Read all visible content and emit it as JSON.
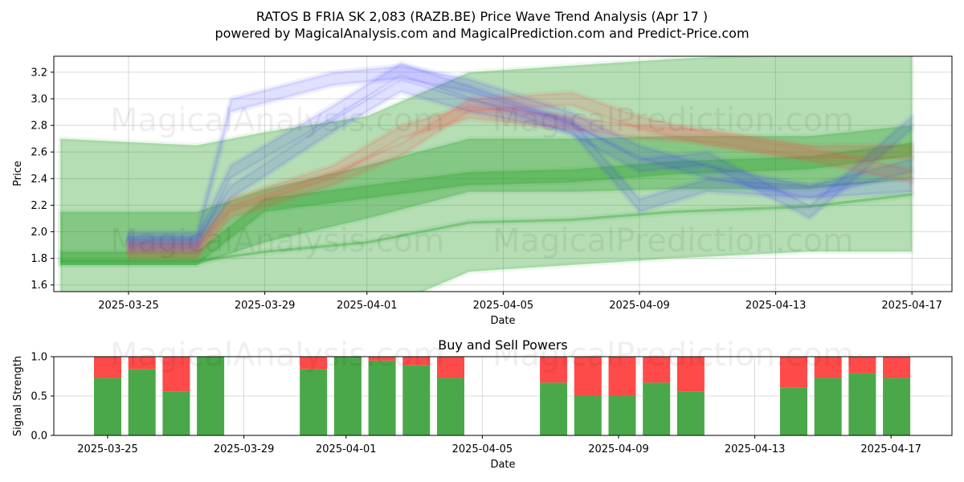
{
  "header": {
    "title_line1": "RATOS B FRIA  SK 2,083 (RAZB.BE) Price Wave Trend Analysis (Apr 17 )",
    "title_line2": "powered by MagicalAnalysis.com and MagicalPrediction.com and Predict-Price.com"
  },
  "watermarks": [
    "MagicalAnalysis.com",
    "MagicalPrediction.com"
  ],
  "colors": {
    "green": "#2ca02c",
    "blue": "#4040ff",
    "red": "#ff4040",
    "buy": "#4aa84a",
    "sell": "#ff4a4a"
  },
  "chart_data": [
    {
      "type": "area",
      "title": "",
      "xlabel": "Date",
      "ylabel": "Price",
      "ylim": [
        1.55,
        3.32
      ],
      "yticks": [
        "1.6",
        "1.8",
        "2.0",
        "2.2",
        "2.4",
        "2.6",
        "2.8",
        "3.0",
        "3.2"
      ],
      "xticks": [
        "2025-03-25",
        "2025-03-29",
        "2025-04-01",
        "2025-04-05",
        "2025-04-09",
        "2025-04-13",
        "2025-04-17"
      ],
      "grid": true,
      "series": [
        {
          "color": "green",
          "dates": [
            "2025-03-23",
            "2025-03-27",
            "2025-03-29",
            "2025-04-01",
            "2025-04-04",
            "2025-04-07",
            "2025-04-10",
            "2025-04-14",
            "2025-04-17"
          ],
          "values": [
            1.78,
            1.78,
            1.85,
            1.92,
            2.07,
            2.09,
            2.15,
            2.19,
            2.28
          ],
          "spread": 0.01
        },
        {
          "color": "green",
          "dates": [
            "2025-03-23",
            "2025-03-27",
            "2025-03-29",
            "2025-04-01",
            "2025-04-04",
            "2025-04-07",
            "2025-04-10",
            "2025-04-14",
            "2025-04-17"
          ],
          "values": [
            1.8,
            1.8,
            2.2,
            2.3,
            2.4,
            2.42,
            2.48,
            2.52,
            2.62
          ],
          "spread": 0.05
        },
        {
          "color": "green",
          "dates": [
            "2025-03-23",
            "2025-03-27",
            "2025-03-29",
            "2025-04-01",
            "2025-04-04",
            "2025-04-07",
            "2025-04-10",
            "2025-04-14",
            "2025-04-17"
          ],
          "values": [
            1.95,
            1.95,
            2.12,
            2.3,
            2.5,
            2.5,
            2.52,
            2.52,
            2.6
          ],
          "spread": 0.2
        },
        {
          "color": "green",
          "dates": [
            "2025-03-23",
            "2025-03-27",
            "2025-03-29",
            "2025-04-01",
            "2025-04-04",
            "2025-04-07",
            "2025-04-10",
            "2025-04-14",
            "2025-04-17"
          ],
          "values": [
            1.95,
            1.9,
            2.0,
            2.12,
            2.45,
            2.5,
            2.55,
            2.6,
            2.6
          ],
          "spread": 0.75
        },
        {
          "color": "blue",
          "dates": [
            "2025-03-25",
            "2025-03-27",
            "2025-03-28",
            "2025-03-31",
            "2025-04-02",
            "2025-04-04",
            "2025-04-07",
            "2025-04-09",
            "2025-04-11",
            "2025-04-14",
            "2025-04-17"
          ],
          "values": [
            1.95,
            1.95,
            2.95,
            3.15,
            3.2,
            3.1,
            2.85,
            2.6,
            2.45,
            2.3,
            2.35
          ],
          "spread": 0.05
        },
        {
          "color": "blue",
          "dates": [
            "2025-03-25",
            "2025-03-27",
            "2025-03-28",
            "2025-03-31",
            "2025-04-02",
            "2025-04-04",
            "2025-04-07",
            "2025-04-09",
            "2025-04-11",
            "2025-04-14",
            "2025-04-17"
          ],
          "values": [
            1.92,
            1.92,
            2.45,
            2.9,
            3.22,
            3.05,
            2.78,
            2.5,
            2.55,
            2.15,
            2.82
          ],
          "spread": 0.05
        },
        {
          "color": "blue",
          "dates": [
            "2025-03-25",
            "2025-03-27",
            "2025-03-28",
            "2025-03-31",
            "2025-04-02",
            "2025-04-04",
            "2025-04-07",
            "2025-04-09",
            "2025-04-11",
            "2025-04-14",
            "2025-04-17"
          ],
          "values": [
            1.9,
            1.9,
            2.3,
            2.8,
            3.1,
            2.95,
            2.8,
            2.2,
            2.35,
            2.3,
            2.5
          ],
          "spread": 0.05
        },
        {
          "color": "red",
          "dates": [
            "2025-03-25",
            "2025-03-27",
            "2025-03-28",
            "2025-03-31",
            "2025-04-02",
            "2025-04-04",
            "2025-04-07",
            "2025-04-09",
            "2025-04-11",
            "2025-04-14",
            "2025-04-17"
          ],
          "values": [
            1.85,
            1.85,
            2.15,
            2.4,
            2.62,
            2.95,
            3.0,
            2.82,
            2.7,
            2.58,
            2.42
          ],
          "spread": 0.05
        },
        {
          "color": "red",
          "dates": [
            "2025-03-25",
            "2025-03-27",
            "2025-03-28",
            "2025-03-31",
            "2025-04-02",
            "2025-04-04",
            "2025-04-07",
            "2025-04-09",
            "2025-04-11",
            "2025-04-14",
            "2025-04-17"
          ],
          "values": [
            1.88,
            1.88,
            2.2,
            2.45,
            2.75,
            2.9,
            2.82,
            2.75,
            2.72,
            2.6,
            2.6
          ],
          "spread": 0.05
        }
      ]
    },
    {
      "type": "bar",
      "title": "Buy and Sell Powers",
      "xlabel": "Date",
      "ylabel": "Signal Strength",
      "ylim": [
        0,
        1
      ],
      "yticks": [
        "0.0",
        "0.5",
        "1.0"
      ],
      "xticks": [
        "2025-03-25",
        "2025-03-29",
        "2025-04-01",
        "2025-04-05",
        "2025-04-09",
        "2025-04-13",
        "2025-04-17"
      ],
      "grid": true,
      "categories": [
        "2025-03-25",
        "2025-03-26",
        "2025-03-27",
        "2025-03-28",
        "2025-03-31",
        "2025-04-01",
        "2025-04-02",
        "2025-04-03",
        "2025-04-04",
        "2025-04-07",
        "2025-04-08",
        "2025-04-09",
        "2025-04-10",
        "2025-04-11",
        "2025-04-14",
        "2025-04-15",
        "2025-04-16",
        "2025-04-17"
      ],
      "series": [
        {
          "color": "buy",
          "values": [
            0.73,
            0.84,
            0.56,
            1.0,
            0.84,
            1.0,
            0.95,
            0.89,
            0.73,
            0.67,
            0.5,
            0.5,
            0.67,
            0.56,
            0.61,
            0.73,
            0.79,
            0.73
          ]
        },
        {
          "color": "sell",
          "values": [
            0.27,
            0.16,
            0.44,
            0.0,
            0.16,
            0.0,
            0.05,
            0.11,
            0.27,
            0.33,
            0.5,
            0.5,
            0.33,
            0.44,
            0.39,
            0.27,
            0.21,
            0.27
          ]
        }
      ]
    }
  ]
}
